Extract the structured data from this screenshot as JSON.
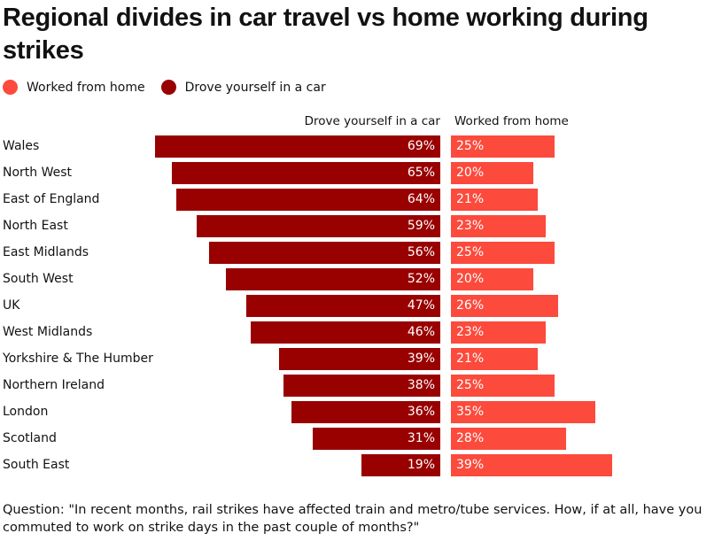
{
  "chart_data": {
    "type": "bar",
    "title": "Regional divides in car travel vs home working during strikes",
    "legend": [
      {
        "name": "Worked from home",
        "color": "#fc4a3c"
      },
      {
        "name": "Drove yourself in a car",
        "color": "#990000"
      }
    ],
    "legend_placement": "top-left",
    "column_headers": [
      "Drove yourself in a car",
      "Worked from home"
    ],
    "categories": [
      "Wales",
      "North West",
      "East of England",
      "North East",
      "East Midlands",
      "South West",
      "UK",
      "West Midlands",
      "Yorkshire & The Humber",
      "Northern Ireland",
      "London",
      "Scotland",
      "South East"
    ],
    "series": [
      {
        "name": "Drove yourself in a car",
        "color": "#990000",
        "values": [
          69,
          65,
          64,
          59,
          56,
          52,
          47,
          46,
          39,
          38,
          36,
          31,
          19
        ]
      },
      {
        "name": "Worked from home",
        "color": "#fc4a3c",
        "values": [
          25,
          20,
          21,
          23,
          25,
          20,
          26,
          23,
          21,
          25,
          35,
          28,
          39
        ]
      }
    ],
    "unit": "%",
    "grid": false
  },
  "footnote": "Question: \"In recent months, rail strikes have affected train and metro/tube services. How, if at all, have you commuted to work on strike days in the past couple of months?\""
}
